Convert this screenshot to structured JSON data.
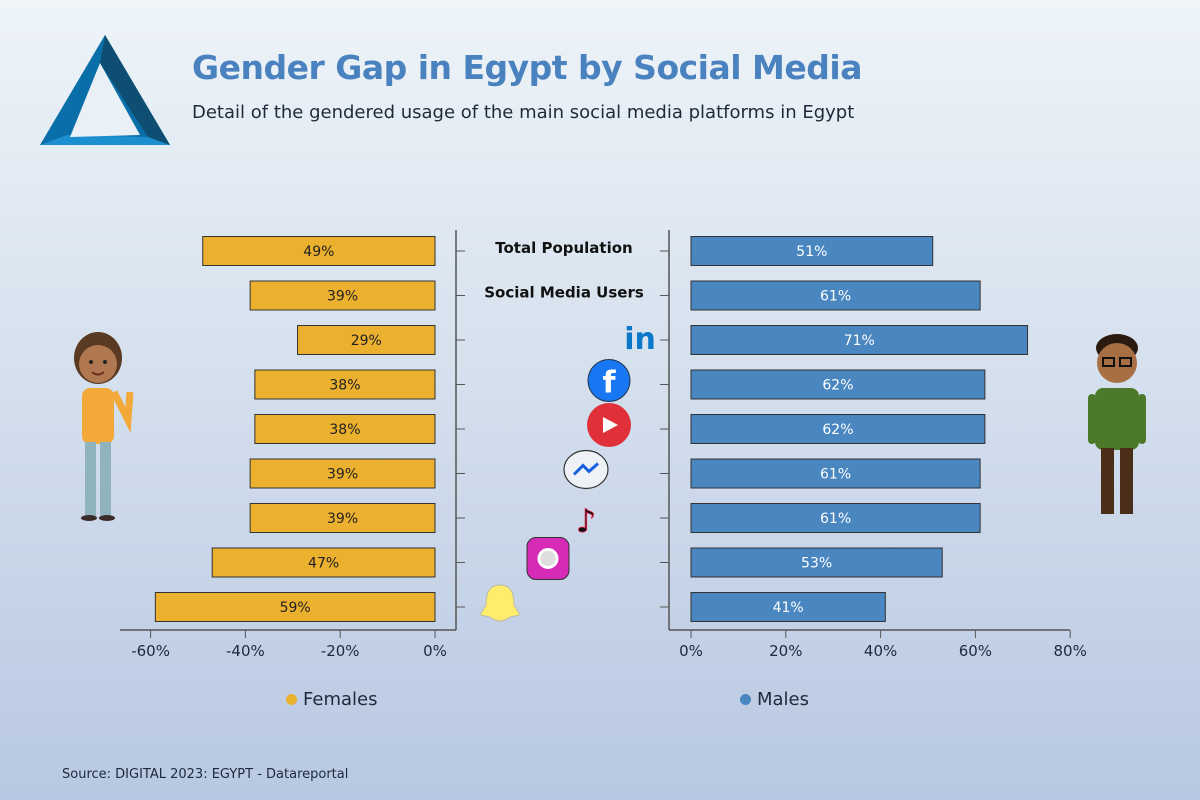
{
  "title": "Gender Gap in Egypt by Social Media",
  "subtitle": "Detail of the gendered usage of the main social media platforms in Egypt",
  "source": "Source: DIGITAL 2023: EGYPT - Datareportal",
  "chart_data": {
    "type": "bar",
    "orientation": "horizontal-butterfly",
    "categories": [
      "Total Population",
      "Social Media Users",
      "LinkedIn",
      "Facebook",
      "YouTube",
      "Messenger",
      "TikTok",
      "Instagram",
      "Snapchat"
    ],
    "category_labels": [
      "Total Population",
      "Social Media Users",
      "",
      "",
      "",
      "",
      "",
      "",
      ""
    ],
    "category_icons": [
      "",
      "",
      "linkedin-icon",
      "facebook-icon",
      "youtube-icon",
      "messenger-icon",
      "tiktok-icon",
      "instagram-icon",
      "snapchat-icon"
    ],
    "series": [
      {
        "name": "Females",
        "values": [
          49,
          39,
          29,
          38,
          38,
          39,
          39,
          47,
          59
        ],
        "color": "#ebb02e",
        "axis_ticks": [
          "-60%",
          "-40%",
          "-20%",
          "0%"
        ],
        "xlim": [
          -60,
          0
        ]
      },
      {
        "name": "Males",
        "values": [
          51,
          61,
          71,
          62,
          62,
          61,
          61,
          53,
          41
        ],
        "color": "#4a86c0",
        "axis_ticks": [
          "0%",
          "20%",
          "40%",
          "60%",
          "80%"
        ],
        "xlim": [
          0,
          80
        ]
      }
    ],
    "legend_position": "bottom",
    "grid": false
  }
}
